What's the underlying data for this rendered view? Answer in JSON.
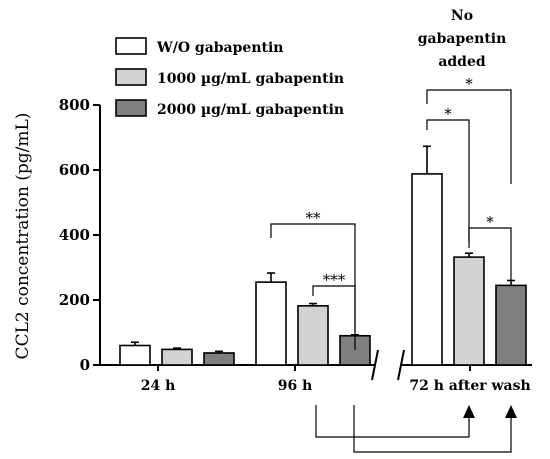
{
  "chart_data": {
    "type": "bar",
    "title": "",
    "ylabel": "CCL2 concentration (pg/mL)",
    "ylim": [
      0,
      800
    ],
    "yticks": [
      0,
      200,
      400,
      600,
      800
    ],
    "categories": [
      "24 h",
      "96 h",
      "72 h after wash"
    ],
    "series": [
      {
        "name": "W/O gabapentin",
        "color": "#ffffff",
        "values": [
          60,
          255,
          588
        ],
        "errors": [
          10,
          28,
          85
        ]
      },
      {
        "name": "1000 µg/mL gabapentin",
        "color": "#d3d3d3",
        "values": [
          48,
          182,
          332
        ],
        "errors": [
          4,
          7,
          12
        ]
      },
      {
        "name": "2000 µg/mL gabapentin",
        "color": "#7f7f7f",
        "values": [
          37,
          90,
          245
        ],
        "errors": [
          5,
          3,
          15
        ]
      }
    ],
    "legend_position": "top-left",
    "axis_break": "between 96 h and 72 h after wash",
    "annotation": "No gabapentin added",
    "significance": [
      {
        "category": 1,
        "from": 0,
        "to": 2,
        "label": "**"
      },
      {
        "category": 1,
        "from": 1,
        "to": 2,
        "label": "***"
      },
      {
        "category": 2,
        "from": 0,
        "to": 2,
        "label": "*"
      },
      {
        "category": 2,
        "from": 0,
        "to": 1,
        "label": "*"
      },
      {
        "category": 2,
        "from": 1,
        "to": 2,
        "label": "*"
      }
    ],
    "arrows": [
      {
        "from_category": 1,
        "to_category": 2,
        "to_series": 1
      },
      {
        "from_category": 1,
        "to_category": 2,
        "to_series": 2
      }
    ]
  }
}
